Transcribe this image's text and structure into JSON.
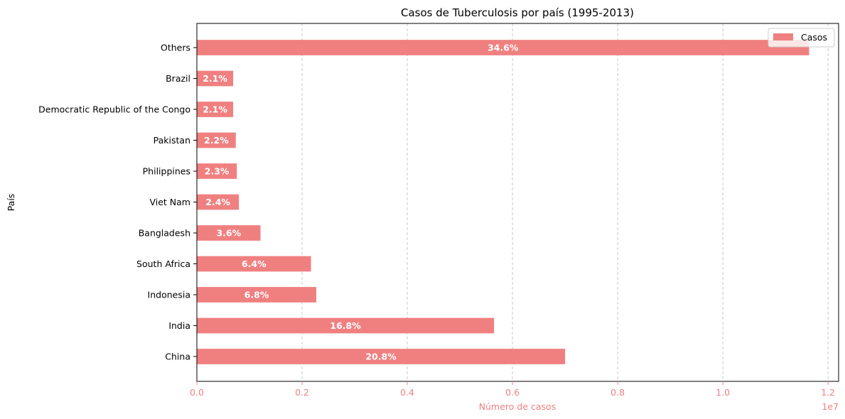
{
  "chart_data": {
    "type": "bar",
    "orientation": "horizontal",
    "title": "Casos de Tuberculosis por país (1995-2013)",
    "xlabel": "Número de casos",
    "ylabel": "País",
    "x_scale_label": "1e7",
    "xlim": [
      0,
      12200000
    ],
    "x_ticks": [
      0,
      2000000,
      4000000,
      6000000,
      8000000,
      10000000,
      12000000
    ],
    "x_tick_labels": [
      "0.0",
      "0.2",
      "0.4",
      "0.6",
      "0.8",
      "1.0",
      "1.2"
    ],
    "grid": "x-dashed",
    "legend_position": "top-right",
    "series": [
      {
        "name": "Casos",
        "categories": [
          "China",
          "India",
          "Indonesia",
          "South Africa",
          "Bangladesh",
          "Viet Nam",
          "Philippines",
          "Pakistan",
          "Democratic Republic of the Congo",
          "Brazil",
          "Others"
        ],
        "values": [
          7000000,
          5650000,
          2270000,
          2170000,
          1210000,
          800000,
          760000,
          740000,
          690000,
          690000,
          11640000
        ],
        "labels": [
          "20.8%",
          "16.8%",
          "6.8%",
          "6.4%",
          "3.6%",
          "2.4%",
          "2.3%",
          "2.2%",
          "2.1%",
          "2.1%",
          "34.6%"
        ]
      }
    ],
    "colors": {
      "bar": "#f08080",
      "axis_accent": "#f08080",
      "grid": "#c8c8c8",
      "text": "#000000"
    }
  }
}
